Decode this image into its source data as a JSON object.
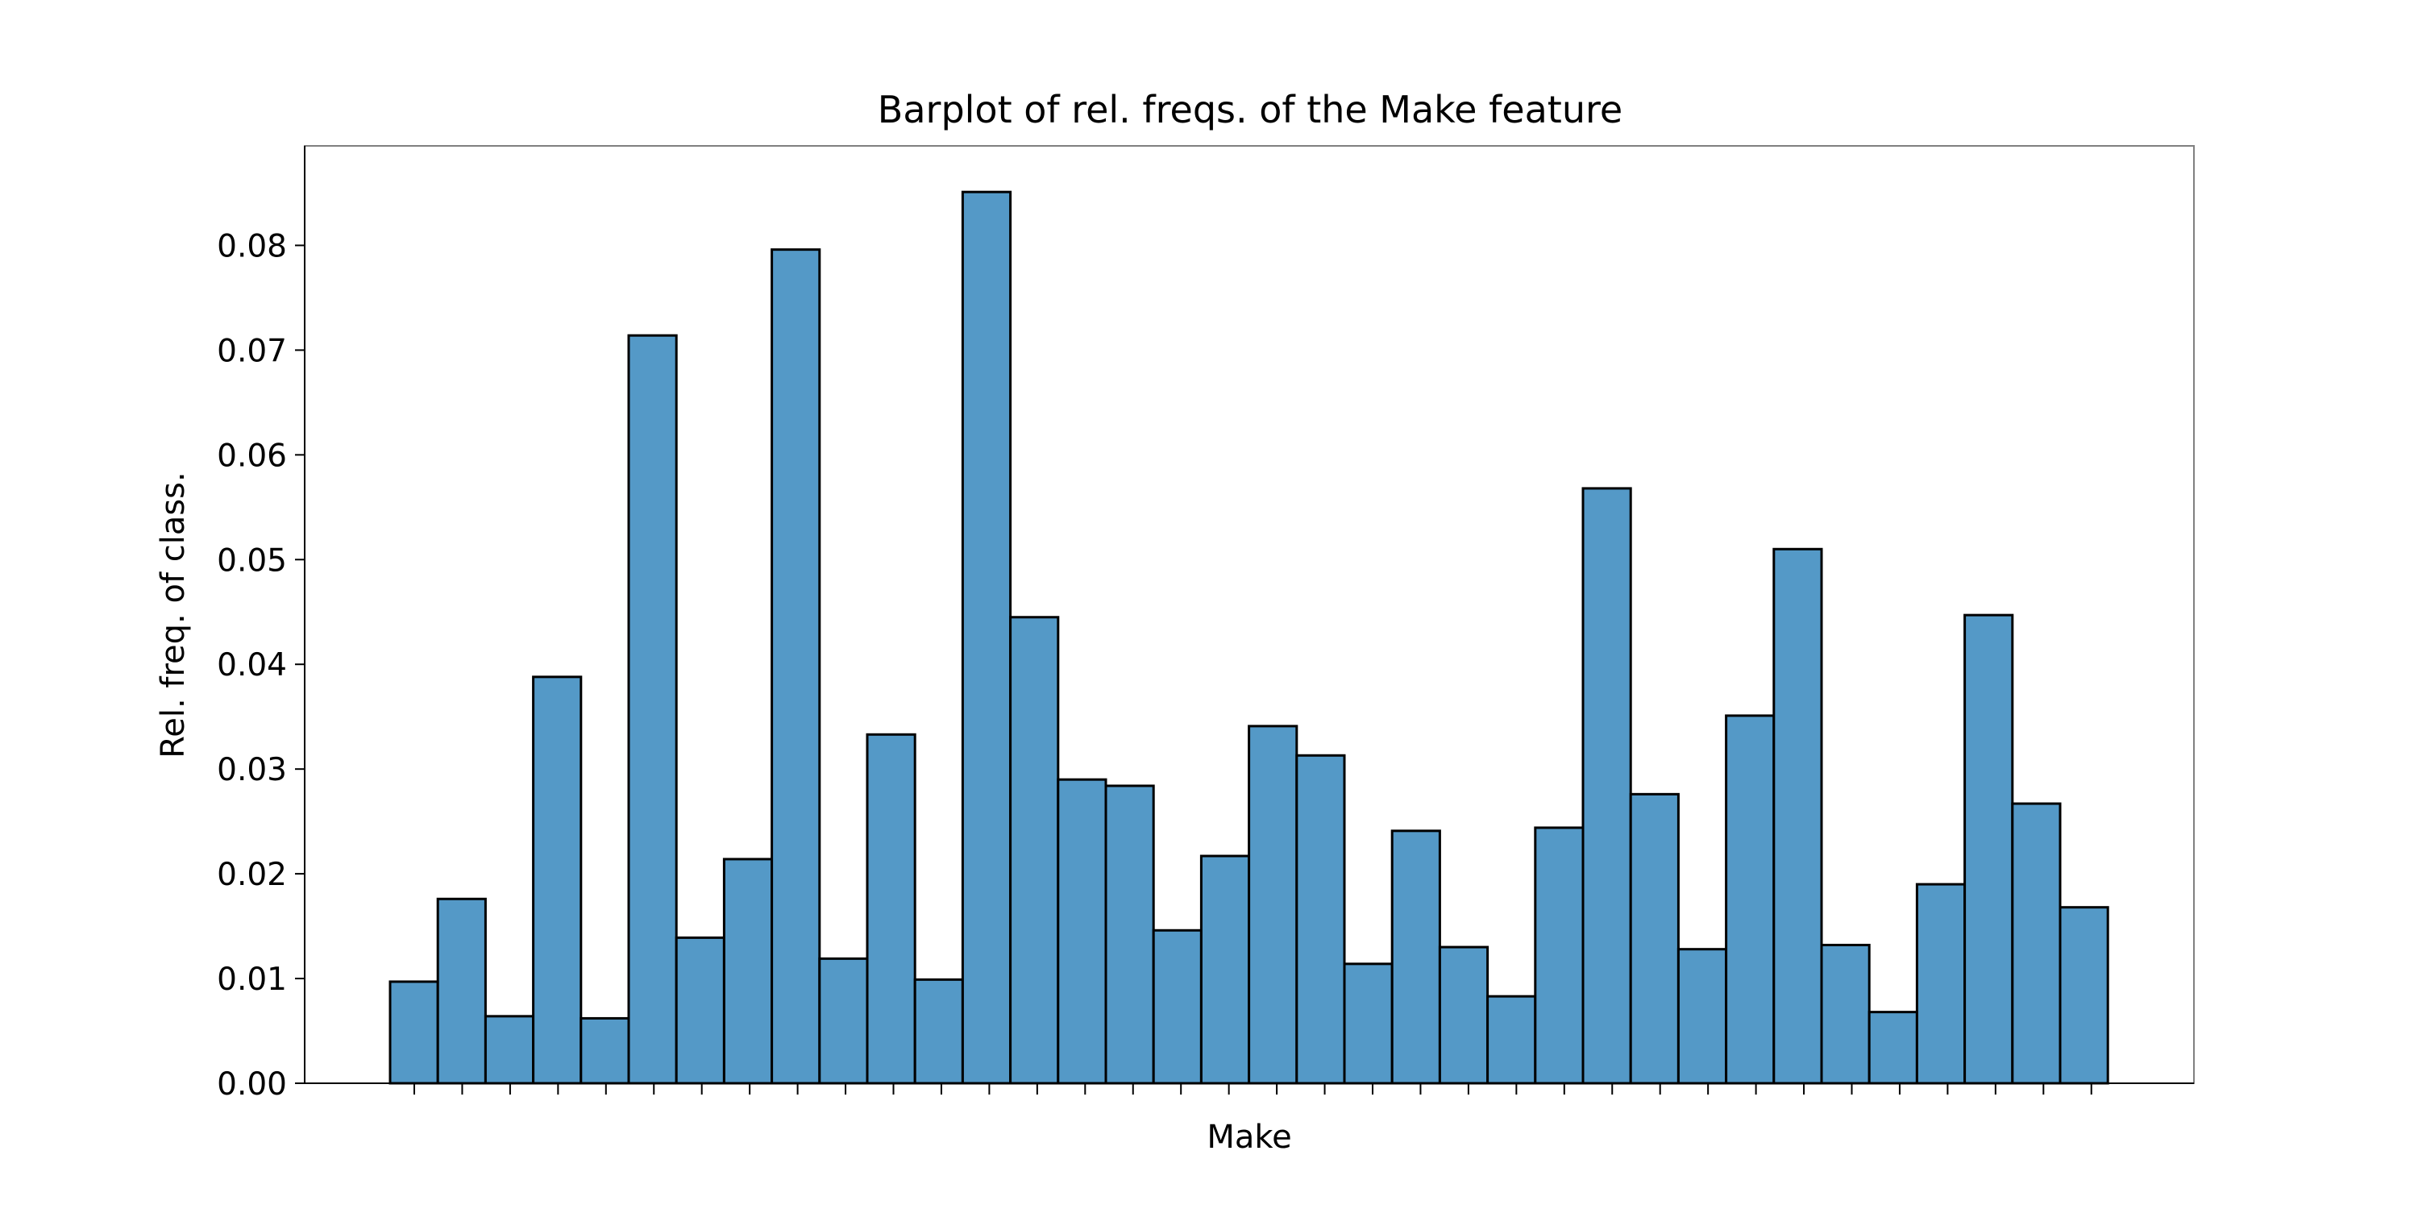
{
  "chart_data": {
    "type": "bar",
    "title": "Barplot of rel. freqs. of the Make feature",
    "xlabel": "Make",
    "ylabel": "Rel. freq. of class.",
    "ylim": [
      0,
      0.0895
    ],
    "yticks": [
      "0.00",
      "0.01",
      "0.02",
      "0.03",
      "0.04",
      "0.05",
      "0.06",
      "0.07",
      "0.08"
    ],
    "categories": [
      "",
      "",
      "",
      "",
      "",
      "",
      "",
      "",
      "",
      "",
      "",
      "",
      "",
      "",
      "",
      "",
      "",
      "",
      "",
      "",
      "",
      "",
      "",
      "",
      "",
      "",
      "",
      "",
      "",
      "",
      "",
      "",
      "",
      "",
      "",
      ""
    ],
    "values": [
      0.0097,
      0.0176,
      0.0064,
      0.0388,
      0.0062,
      0.0714,
      0.0139,
      0.0214,
      0.0796,
      0.0119,
      0.0333,
      0.0099,
      0.0851,
      0.0445,
      0.029,
      0.0284,
      0.0146,
      0.0217,
      0.0341,
      0.0313,
      0.0114,
      0.0241,
      0.013,
      0.0083,
      0.0244,
      0.0568,
      0.0276,
      0.0128,
      0.0351,
      0.051,
      0.0132,
      0.0068,
      0.019,
      0.0447,
      0.0267,
      0.0168
    ],
    "grid": false,
    "bar_color": "#5499c7",
    "edge_color": "#000000"
  }
}
